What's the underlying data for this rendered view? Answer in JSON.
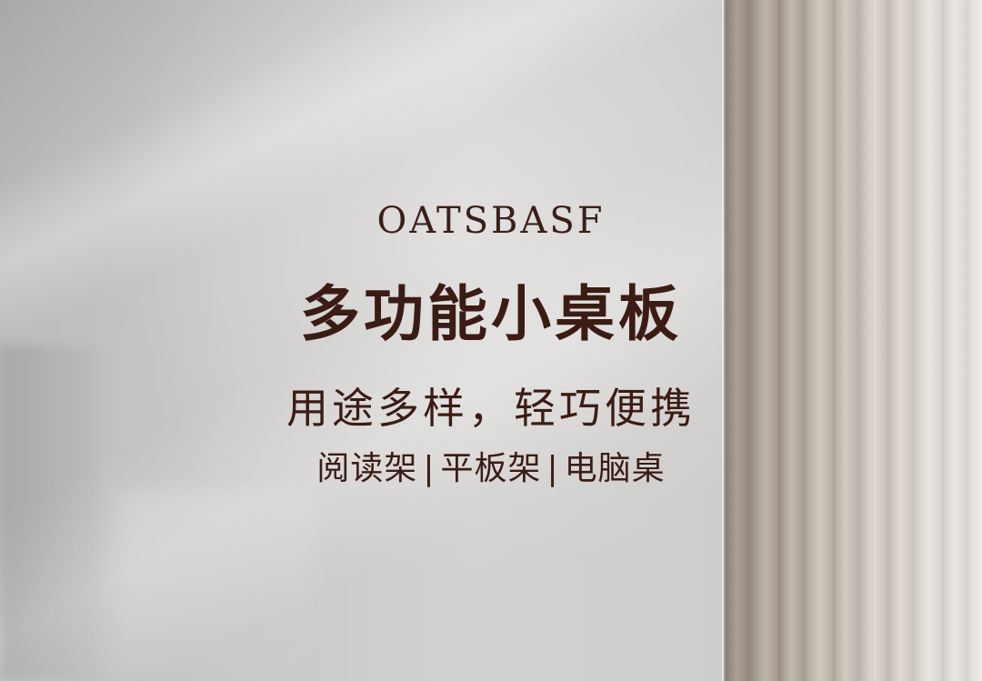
{
  "banner": {
    "brand": "OATSBASF",
    "title": "多功能小桌板",
    "subtitle": "用途多样，轻巧便携",
    "tags": [
      "阅读架",
      "平板架",
      "电脑桌"
    ],
    "separator": "|",
    "text_color": "#3b1c15",
    "wall_color": "#cac8c6",
    "curtain_color": "#e6e1db"
  }
}
